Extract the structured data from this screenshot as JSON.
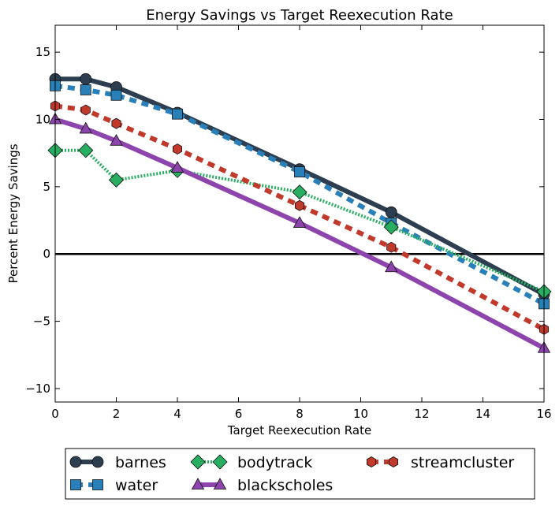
{
  "chart_data": {
    "type": "line",
    "title": "Energy Savings vs Target Reexecution Rate",
    "xlabel": "Target Reexecution Rate",
    "ylabel": "Percent Energy Savings",
    "xlim": [
      0,
      16
    ],
    "ylim": [
      -11,
      17
    ],
    "xticks": [
      0,
      2,
      4,
      6,
      8,
      10,
      12,
      14,
      16
    ],
    "yticks": [
      -10,
      -5,
      0,
      5,
      10,
      15
    ],
    "xtick_labels": [
      "0",
      "2",
      "4",
      "6",
      "8",
      "10",
      "12",
      "14",
      "16"
    ],
    "ytick_labels": [
      "−10",
      "−5",
      "0",
      "5",
      "10",
      "15"
    ],
    "reference_line": 0,
    "grid": false,
    "legend_position": "bottom, outside plot",
    "x": [
      0,
      1,
      2,
      4,
      8,
      11,
      16
    ],
    "series": [
      {
        "name": "barnes",
        "color": "#2c3e50",
        "marker": "circle",
        "style": "solid",
        "values": [
          13.0,
          13.0,
          12.4,
          10.5,
          6.3,
          3.1,
          -3.0
        ]
      },
      {
        "name": "water",
        "color": "#2980b9",
        "marker": "square",
        "style": "dashed",
        "values": [
          12.5,
          12.2,
          11.8,
          10.4,
          6.1,
          2.3,
          -3.7
        ]
      },
      {
        "name": "bodytrack",
        "color": "#27ae60",
        "marker": "diamond",
        "style": "dotted",
        "values": [
          7.7,
          7.7,
          5.5,
          6.2,
          4.6,
          2.0,
          -2.8
        ]
      },
      {
        "name": "blackscholes",
        "color": "#8e44ad",
        "marker": "triangle",
        "style": "solid",
        "values": [
          10.0,
          9.3,
          8.4,
          6.4,
          2.3,
          -1.0,
          -7.0
        ]
      },
      {
        "name": "streamcluster",
        "color": "#c0392b",
        "marker": "hexagon",
        "style": "dashed",
        "values": [
          11.0,
          10.7,
          9.7,
          7.8,
          3.6,
          0.5,
          -5.6
        ]
      }
    ]
  }
}
